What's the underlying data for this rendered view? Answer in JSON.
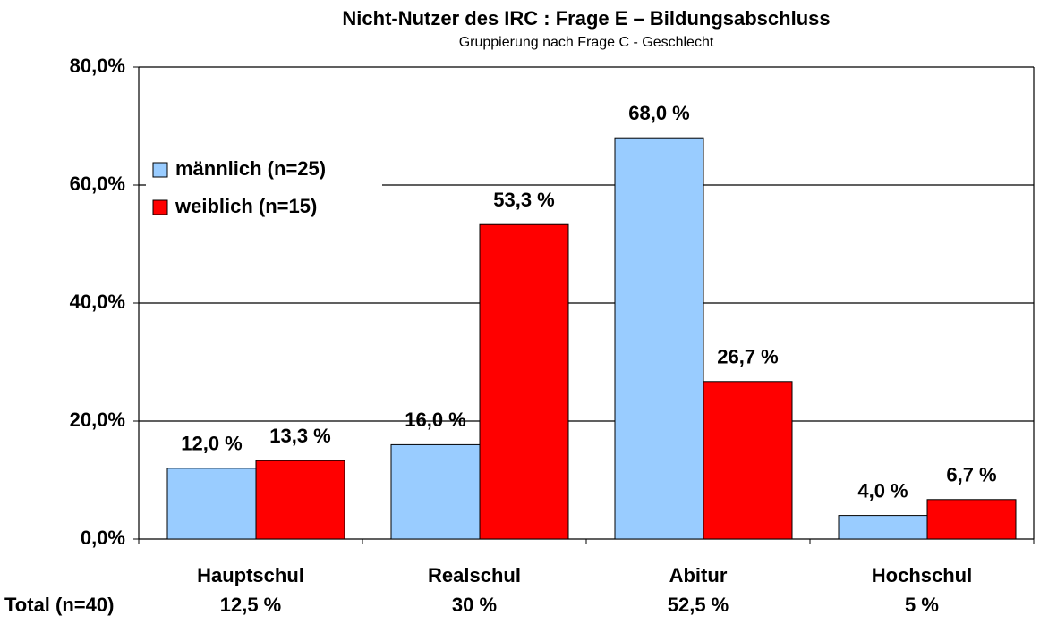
{
  "chart_data": {
    "type": "bar",
    "title": "Nicht-Nutzer des IRC : Frage E – Bildungsabschluss",
    "subtitle": "Gruppierung nach Frage C - Geschlecht",
    "categories": [
      "Hauptschul",
      "Realschul",
      "Abitur",
      "Hochschul"
    ],
    "series": [
      {
        "name": "männlich (n=25)",
        "color": "#99ccff",
        "values": [
          12.0,
          16.0,
          68.0,
          4.0
        ],
        "value_labels": [
          "12,0 %",
          "16,0 %",
          "68,0 %",
          "4,0 %"
        ]
      },
      {
        "name": "weiblich (n=15)",
        "color": "#ff0000",
        "values": [
          13.3,
          53.3,
          26.7,
          6.7
        ],
        "value_labels": [
          "13,3 %",
          "53,3 %",
          "26,7 %",
          "6,7 %"
        ]
      }
    ],
    "totals": {
      "label": "Total (n=40)",
      "values": [
        12.5,
        30,
        52.5,
        5
      ],
      "value_labels": [
        "12,5 %",
        "30 %",
        "52,5 %",
        "5 %"
      ]
    },
    "ylim": [
      0,
      80
    ],
    "yticks": [
      {
        "value": 0,
        "label": "0,0%"
      },
      {
        "value": 20,
        "label": "20,0%"
      },
      {
        "value": 40,
        "label": "40,0%"
      },
      {
        "value": 60,
        "label": "60,0%"
      },
      {
        "value": 80,
        "label": "80,0%"
      }
    ],
    "grid": true,
    "legend": "upper-left"
  }
}
